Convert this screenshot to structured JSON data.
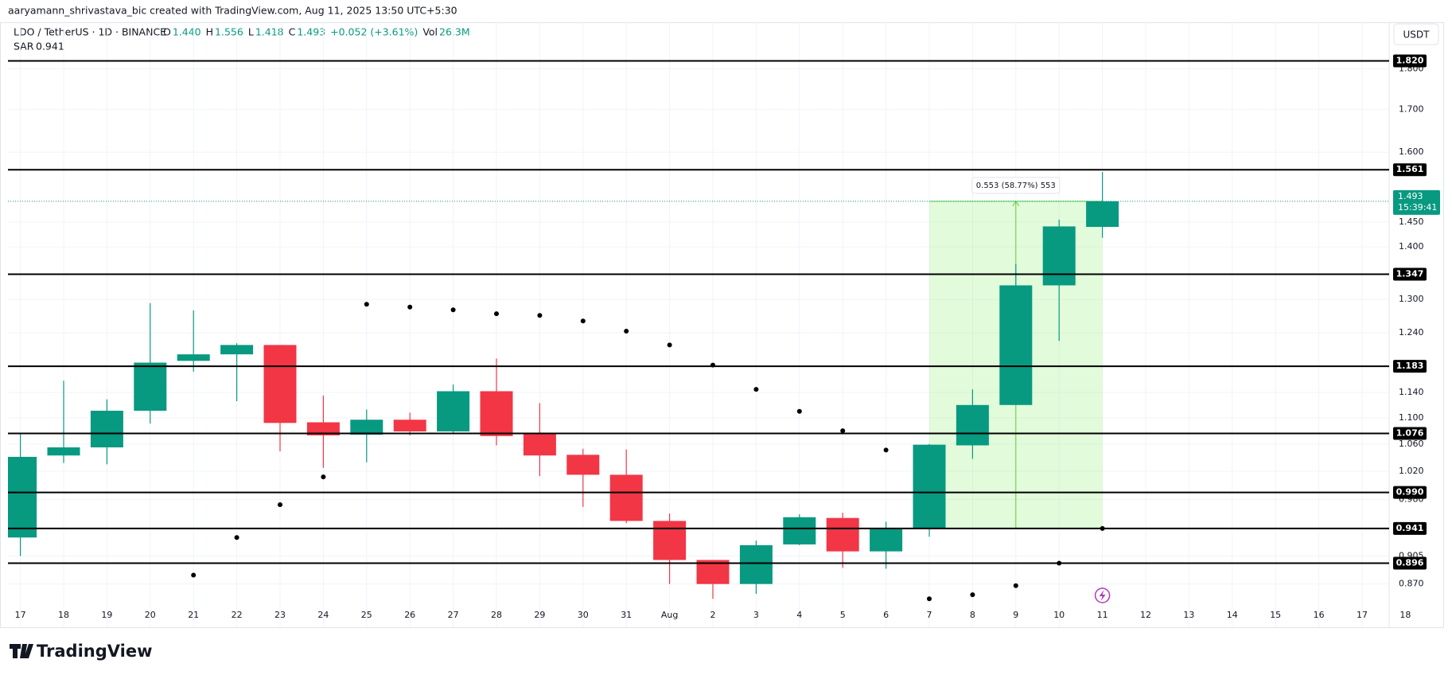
{
  "header": {
    "credit": "aaryamann_shrivastava_bic created with TradingView.com, Aug 11, 2025 13:50 UTC+5:30",
    "symbol": "LDO / TetherUS · 1D · BINANCE",
    "ohlc": [
      {
        "label": "O",
        "value": "1.440"
      },
      {
        "label": "H",
        "value": "1.556"
      },
      {
        "label": "L",
        "value": "1.418"
      },
      {
        "label": "C",
        "value": "1.493"
      }
    ],
    "change": "+0.052 (+3.61%)",
    "volume": {
      "label": "Vol",
      "value": "26.3M"
    },
    "sar": {
      "label": "SAR",
      "value": "0.941"
    }
  },
  "currency": "USDT",
  "brand": "TradingView",
  "chart_data": {
    "type": "candlestick",
    "categories": [
      "17",
      "18",
      "19",
      "20",
      "21",
      "22",
      "23",
      "24",
      "25",
      "26",
      "27",
      "28",
      "29",
      "30",
      "31",
      "Aug",
      "2",
      "3",
      "4",
      "5",
      "6",
      "7",
      "8",
      "9",
      "10",
      "11",
      "12",
      "13",
      "14",
      "15",
      "16",
      "17",
      "18"
    ],
    "open": [
      0.929,
      1.043,
      1.055,
      1.111,
      1.192,
      1.203,
      1.219,
      1.093,
      1.074,
      1.097,
      1.079,
      1.142,
      1.076,
      1.044,
      1.015,
      0.951,
      0.9,
      0.87,
      0.92,
      0.955,
      0.911,
      0.941,
      1.058,
      1.12,
      1.326,
      1.44,
      null,
      null,
      null,
      null,
      null,
      null,
      null
    ],
    "high": [
      1.076,
      1.159,
      1.129,
      1.293,
      1.28,
      1.222,
      1.219,
      1.135,
      1.113,
      1.108,
      1.153,
      1.196,
      1.123,
      1.053,
      1.052,
      0.961,
      0.9,
      0.925,
      0.96,
      0.962,
      0.95,
      1.06,
      1.145,
      1.366,
      1.455,
      1.556,
      null,
      null,
      null,
      null,
      null,
      null,
      null
    ],
    "low": [
      0.905,
      1.032,
      1.03,
      1.091,
      1.174,
      1.126,
      1.049,
      1.025,
      1.033,
      1.073,
      1.076,
      1.058,
      1.013,
      0.97,
      0.948,
      0.87,
      0.852,
      0.858,
      0.919,
      0.89,
      0.889,
      0.93,
      1.038,
      1.12,
      1.226,
      1.418,
      null,
      null,
      null,
      null,
      null,
      null,
      null
    ],
    "close": [
      1.041,
      1.055,
      1.111,
      1.189,
      1.203,
      1.219,
      1.092,
      1.073,
      1.097,
      1.079,
      1.142,
      1.072,
      1.043,
      1.015,
      0.951,
      0.9,
      0.87,
      0.919,
      0.956,
      0.911,
      0.94,
      1.059,
      1.12,
      1.326,
      1.441,
      1.493,
      null,
      null,
      null,
      null,
      null,
      null,
      null
    ],
    "up_color": "#089981",
    "down_color": "#f23645",
    "sar": {
      "color": "#000000",
      "values": [
        null,
        null,
        null,
        null,
        0.881,
        0.929,
        0.973,
        1.012,
        1.291,
        1.286,
        1.281,
        1.274,
        1.271,
        1.261,
        1.243,
        1.219,
        1.185,
        1.145,
        1.11,
        1.08,
        1.051,
        0.852,
        0.857,
        0.868,
        0.896,
        0.941,
        null,
        null,
        null,
        null,
        null,
        null,
        null
      ]
    },
    "log_scale": true,
    "grid": true,
    "ylim": [
      0.8185,
      1.922
    ],
    "yticks": [
      {
        "value": 0.87,
        "label": "0.870"
      },
      {
        "value": 0.905,
        "label": "0.905"
      },
      {
        "value": 0.98,
        "label": "0.980"
      },
      {
        "value": 1.02,
        "label": "1.020"
      },
      {
        "value": 1.06,
        "label": "1.060"
      },
      {
        "value": 1.1,
        "label": "1.100"
      },
      {
        "value": 1.14,
        "label": "1.140"
      },
      {
        "value": 1.24,
        "label": "1.240"
      },
      {
        "value": 1.3,
        "label": "1.300"
      },
      {
        "value": 1.4,
        "label": "1.400"
      },
      {
        "value": 1.45,
        "label": "1.450"
      },
      {
        "value": 1.6,
        "label": "1.600"
      },
      {
        "value": 1.7,
        "label": "1.700"
      },
      {
        "value": 1.8,
        "label": "1.800"
      }
    ],
    "levels": [
      {
        "value": 1.82,
        "label": "1.820"
      },
      {
        "value": 1.561,
        "label": "1.561"
      },
      {
        "value": 1.347,
        "label": "1.347"
      },
      {
        "value": 1.183,
        "label": "1.183"
      },
      {
        "value": 1.076,
        "label": "1.076"
      },
      {
        "value": 0.99,
        "label": "0.990"
      },
      {
        "value": 0.941,
        "label": "0.941"
      },
      {
        "value": 0.896,
        "label": "0.896"
      }
    ],
    "last": {
      "value": 1.493,
      "label": "1.493",
      "countdown": "15:39:41"
    },
    "measure": {
      "start": "7",
      "end": "11",
      "low": 0.941,
      "high": 1.493,
      "label": "0.553 (58.77%) 553"
    }
  }
}
